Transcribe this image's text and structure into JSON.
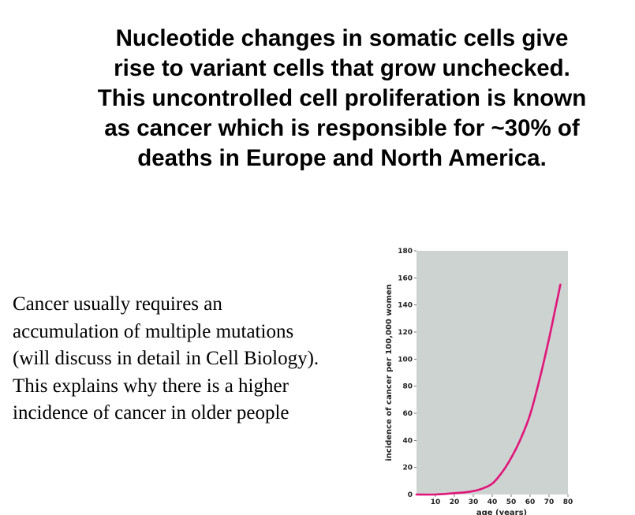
{
  "title_lines": [
    "Nucleotide changes in somatic cells give",
    "rise to variant cells that grow unchecked.",
    "This uncontrolled cell proliferation is known",
    "as cancer which is responsible for ~30% of",
    "deaths in Europe and North America."
  ],
  "body_lines": [
    "Cancer usually requires an",
    "accumulation of multiple mutations",
    "(will discuss in detail in Cell Biology).",
    "This explains why there is a higher",
    "incidence of cancer in older people"
  ],
  "chart_data": {
    "type": "line",
    "xlabel": "age (years)",
    "ylabel": "incidence of cancer per 100,000 women",
    "xlim": [
      0,
      80
    ],
    "ylim": [
      0,
      180
    ],
    "x_ticks": [
      10,
      20,
      30,
      40,
      50,
      60,
      70,
      80
    ],
    "y_ticks": [
      0,
      20,
      40,
      60,
      80,
      100,
      120,
      140,
      160,
      180
    ],
    "grid": false,
    "colors": {
      "plot_background": "#cdd3d0",
      "line": "#e0157a"
    },
    "series": [
      {
        "x": [
          0,
          10,
          20,
          25,
          30,
          35,
          40,
          45,
          50,
          55,
          60,
          65,
          70,
          73,
          76
        ],
        "y": [
          0,
          0,
          1,
          1.5,
          2.5,
          4.5,
          8,
          16,
          27,
          41,
          59,
          85,
          115,
          135,
          155
        ]
      }
    ]
  }
}
